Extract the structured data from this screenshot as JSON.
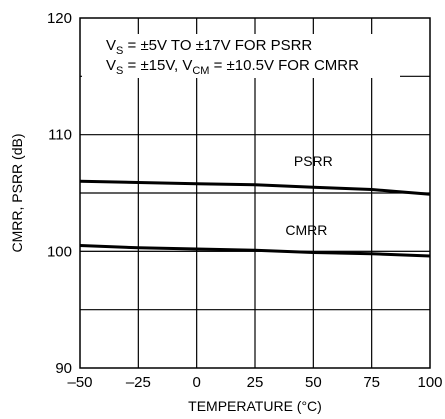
{
  "chart_data": {
    "type": "line",
    "xlabel": "TEMPERATURE (°C)",
    "ylabel": "CMRR, PSRR (dB)",
    "xlim": [
      -50,
      100
    ],
    "ylim": [
      90,
      120
    ],
    "xticks": [
      -50,
      -25,
      0,
      25,
      50,
      75,
      100
    ],
    "yticks": [
      90,
      100,
      110,
      120
    ],
    "x_tick_labels": [
      "–50",
      "–25",
      "0",
      "25",
      "50",
      "75",
      "100"
    ],
    "y_tick_labels": [
      "90",
      "100",
      "110",
      "120"
    ],
    "grid": true,
    "series": [
      {
        "name": "PSRR",
        "x": [
          -50,
          -25,
          0,
          25,
          50,
          75,
          100
        ],
        "values": [
          106.0,
          105.9,
          105.8,
          105.7,
          105.5,
          105.3,
          104.9
        ]
      },
      {
        "name": "CMRR",
        "x": [
          -50,
          -25,
          0,
          25,
          50,
          75,
          100
        ],
        "values": [
          100.5,
          100.3,
          100.2,
          100.1,
          99.9,
          99.8,
          99.6
        ]
      }
    ],
    "reference_lines": [
      105,
      100
    ],
    "condition_text": {
      "line1_prefix": "V",
      "line1_sub": "S",
      "line1_rest": " = ±5V TO ±17V FOR PSRR",
      "line2_prefix": "V",
      "line2_sub": "S",
      "line2_mid": " = ±15V, V",
      "line2_sub2": "CM",
      "line2_rest": " = ±10.5V FOR CMRR"
    },
    "colors": {
      "line": "#000000",
      "grid": "#000000",
      "background": "#ffffff"
    }
  }
}
